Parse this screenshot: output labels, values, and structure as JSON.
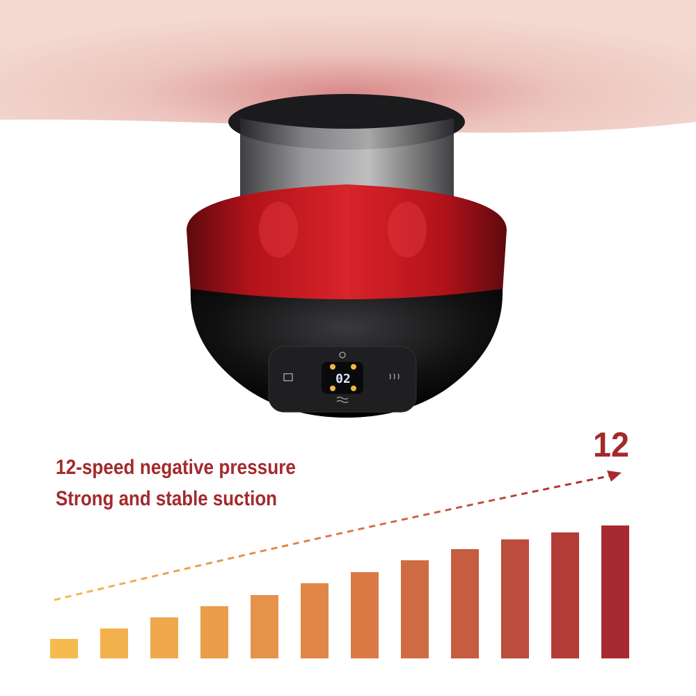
{
  "headline": {
    "line1": "12-speed negative pressure",
    "line2": "Strong and stable suction"
  },
  "max_level": "12",
  "device": {
    "display": "02"
  }
}
